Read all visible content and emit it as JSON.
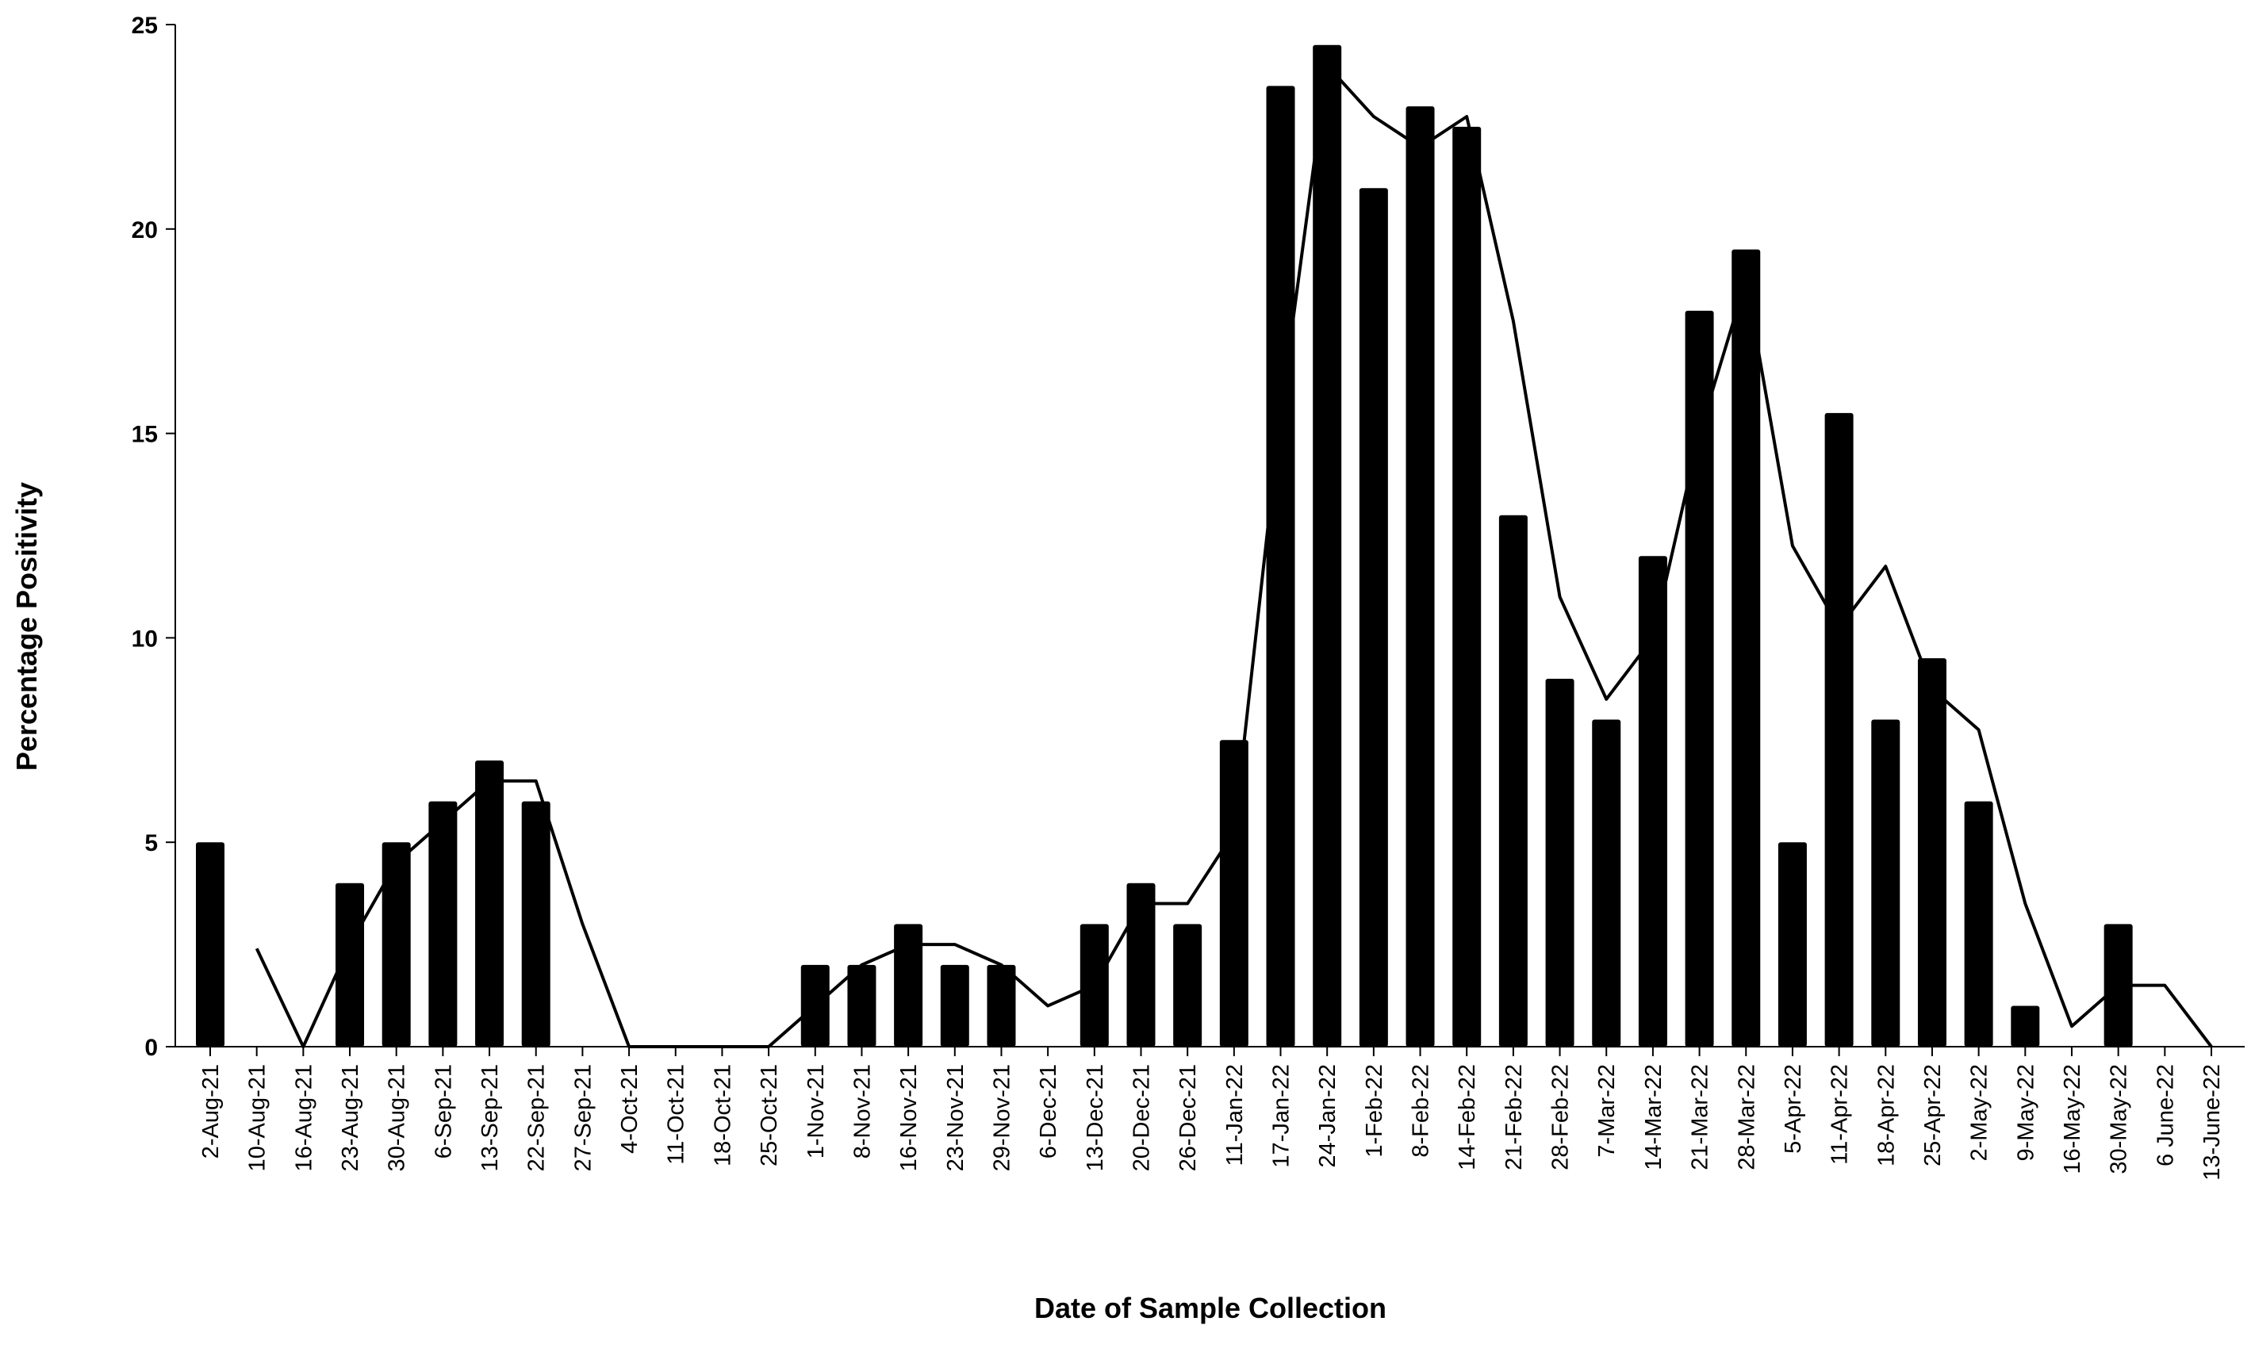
{
  "chart_data": {
    "type": "bar",
    "x_label": "Date of Sample Collection",
    "y_label": "Percentage Positivity",
    "categories": [
      "2-Aug-21",
      "10-Aug-21",
      "16-Aug-21",
      "23-Aug-21",
      "30-Aug-21",
      "6-Sep-21",
      "13-Sep-21",
      "22-Sep-21",
      "27-Sep-21",
      "4-Oct-21",
      "11-Oct-21",
      "18-Oct-21",
      "25-Oct-21",
      "1-Nov-21",
      "8-Nov-21",
      "16-Nov-21",
      "23-Nov-21",
      "29-Nov-21",
      "6-Dec-21",
      "13-Dec-21",
      "20-Dec-21",
      "26-Dec-21",
      "11-Jan-22",
      "17-Jan-22",
      "24-Jan-22",
      "1-Feb-22",
      "8-Feb-22",
      "14-Feb-22",
      "21-Feb-22",
      "28-Feb-22",
      "7-Mar-22",
      "14-Mar-22",
      "21-Mar-22",
      "28-Mar-22",
      "5-Apr-22",
      "11-Apr-22",
      "18-Apr-22",
      "25-Apr-22",
      "2-May-22",
      "9-May-22",
      "16-May-22",
      "30-May-22",
      "6 June-22",
      "13-June-22"
    ],
    "series": [
      {
        "kind": "bar",
        "color": "#000000",
        "values": [
          5,
          0,
          0,
          4,
          5,
          6,
          7,
          6,
          0,
          0,
          0,
          0,
          0,
          2,
          2,
          3,
          2,
          2,
          0,
          3,
          4,
          3,
          7.5,
          23.5,
          24.5,
          21,
          23,
          22.5,
          13,
          9,
          8,
          12,
          18,
          19.5,
          5,
          15.5,
          8,
          9.5,
          6,
          1,
          0,
          3,
          0,
          0
        ]
      },
      {
        "kind": "line",
        "color": "#000000",
        "values": [
          null,
          2.4,
          0,
          2.5,
          4.5,
          5.5,
          6.5,
          6.5,
          3,
          0,
          0,
          0,
          0,
          1,
          2,
          2.5,
          2.5,
          2,
          1,
          1.5,
          3.5,
          3.5,
          5.25,
          15.5,
          24,
          22.75,
          22,
          22.75,
          17.75,
          11,
          8.5,
          10,
          15,
          18.75,
          12.25,
          10.25,
          11.75,
          8.75,
          7.75,
          3.5,
          0.5,
          1.5,
          1.5,
          0
        ]
      }
    ],
    "ylim": [
      0,
      25
    ],
    "yticks": [
      0,
      5,
      10,
      15,
      20,
      25
    ]
  }
}
